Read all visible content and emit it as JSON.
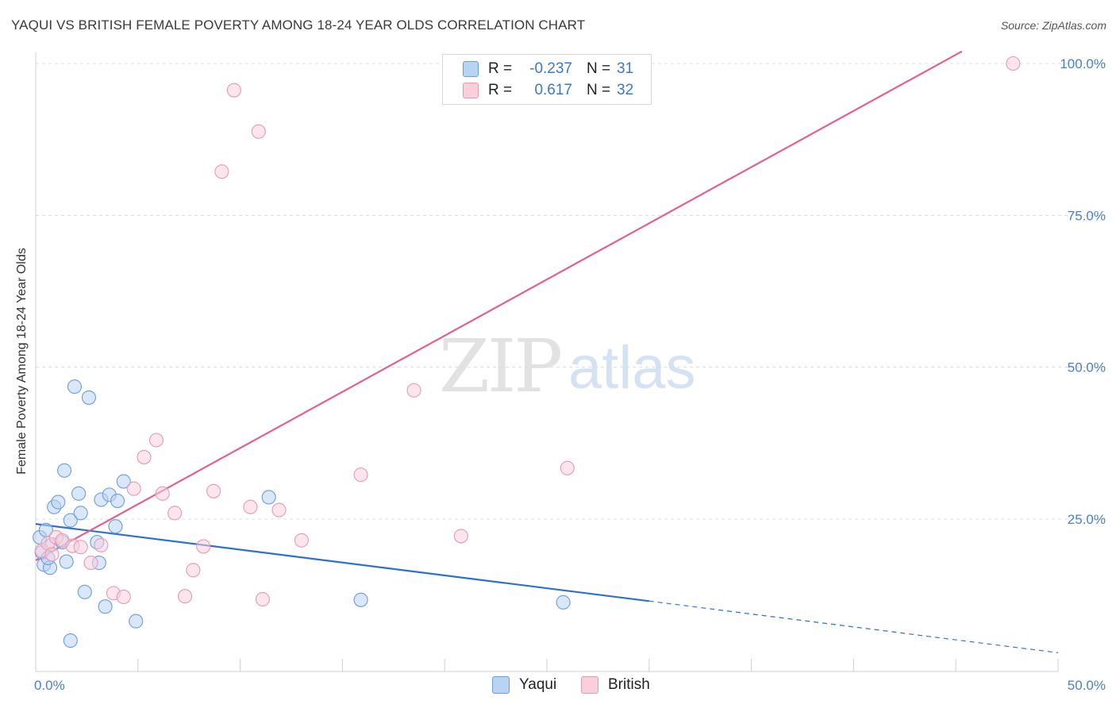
{
  "title": "YAQUI VS BRITISH FEMALE POVERTY AMONG 18-24 YEAR OLDS CORRELATION CHART",
  "source": "Source: ZipAtlas.com",
  "watermark": {
    "zip": "ZIP",
    "atlas": "atlas"
  },
  "legend": {
    "rows": [
      {
        "r_label": "R =",
        "r_value": "-0.237",
        "n_label": "N =",
        "n_value": "31",
        "color": "#a9c9f0",
        "border": "#6a9ed8"
      },
      {
        "r_label": "R =",
        "r_value": "0.617",
        "n_label": "N =",
        "n_value": "32",
        "color": "#f8c3d3",
        "border": "#e69ab2"
      }
    ]
  },
  "bottom_legend": {
    "yaqui": "Yaqui",
    "british": "British"
  },
  "chart_data": {
    "type": "scatter",
    "title": "YAQUI VS BRITISH FEMALE POVERTY AMONG 18-24 YEAR OLDS CORRELATION CHART",
    "xlabel": "",
    "ylabel": "Female Poverty Among 18-24 Year Olds",
    "xlim": [
      0,
      50
    ],
    "ylim": [
      0,
      102
    ],
    "x_tick_labels": [
      {
        "value": 0,
        "label": "0.0%"
      },
      {
        "value": 50,
        "label": "50.0%"
      }
    ],
    "y_tick_labels": [
      {
        "value": 25,
        "label": "25.0%"
      },
      {
        "value": 50,
        "label": "50.0%"
      },
      {
        "value": 75,
        "label": "75.0%"
      },
      {
        "value": 100,
        "label": "100.0%"
      }
    ],
    "series": [
      {
        "name": "Yaqui",
        "color": "#6a9ed8",
        "fill": "#b9d4f3",
        "trend": {
          "x0": 0,
          "y0": 24.2,
          "x1": 30,
          "y1": 11.5,
          "dash_to_x": 50,
          "dash_to_y": 3.0,
          "color": "#2e6fd0"
        },
        "points": [
          [
            0.2,
            22.0
          ],
          [
            0.3,
            19.5
          ],
          [
            0.4,
            17.5
          ],
          [
            0.5,
            23.2
          ],
          [
            0.7,
            17.0
          ],
          [
            0.8,
            20.8
          ],
          [
            0.9,
            27.0
          ],
          [
            1.1,
            27.8
          ],
          [
            1.3,
            21.2
          ],
          [
            1.4,
            33.0
          ],
          [
            1.5,
            18.0
          ],
          [
            1.7,
            24.8
          ],
          [
            1.9,
            46.8
          ],
          [
            2.1,
            29.2
          ],
          [
            2.2,
            26.0
          ],
          [
            2.4,
            13.0
          ],
          [
            2.6,
            45.0
          ],
          [
            3.0,
            21.2
          ],
          [
            3.1,
            17.8
          ],
          [
            3.2,
            28.2
          ],
          [
            3.4,
            10.6
          ],
          [
            3.6,
            29.0
          ],
          [
            3.9,
            23.8
          ],
          [
            4.0,
            28.0
          ],
          [
            4.3,
            31.2
          ],
          [
            4.9,
            8.2
          ],
          [
            1.7,
            5.0
          ],
          [
            11.4,
            28.6
          ],
          [
            15.9,
            11.7
          ],
          [
            25.8,
            11.3
          ],
          [
            0.6,
            18.6
          ]
        ]
      },
      {
        "name": "British",
        "color": "#e69ab2",
        "fill": "#f9cfdc",
        "trend": {
          "x0": 0,
          "y0": 18.2,
          "x1": 45.3,
          "y1": 102,
          "color": "#e06090"
        },
        "points": [
          [
            0.3,
            19.8
          ],
          [
            0.6,
            21.0
          ],
          [
            0.8,
            19.2
          ],
          [
            1.0,
            22.0
          ],
          [
            1.3,
            21.5
          ],
          [
            1.8,
            20.6
          ],
          [
            2.2,
            20.4
          ],
          [
            2.7,
            17.8
          ],
          [
            3.2,
            20.7
          ],
          [
            3.8,
            12.8
          ],
          [
            4.3,
            12.2
          ],
          [
            4.8,
            30.0
          ],
          [
            5.3,
            35.2
          ],
          [
            5.9,
            38.0
          ],
          [
            6.2,
            29.2
          ],
          [
            6.8,
            26.0
          ],
          [
            7.3,
            12.3
          ],
          [
            7.7,
            16.6
          ],
          [
            8.2,
            20.5
          ],
          [
            8.7,
            29.6
          ],
          [
            9.1,
            82.2
          ],
          [
            9.7,
            95.6
          ],
          [
            10.5,
            27.0
          ],
          [
            10.9,
            88.8
          ],
          [
            11.1,
            11.8
          ],
          [
            11.9,
            26.5
          ],
          [
            13.0,
            21.5
          ],
          [
            15.9,
            32.3
          ],
          [
            18.5,
            46.2
          ],
          [
            20.8,
            22.2
          ],
          [
            26.0,
            33.4
          ],
          [
            47.8,
            100.0
          ]
        ]
      }
    ]
  }
}
